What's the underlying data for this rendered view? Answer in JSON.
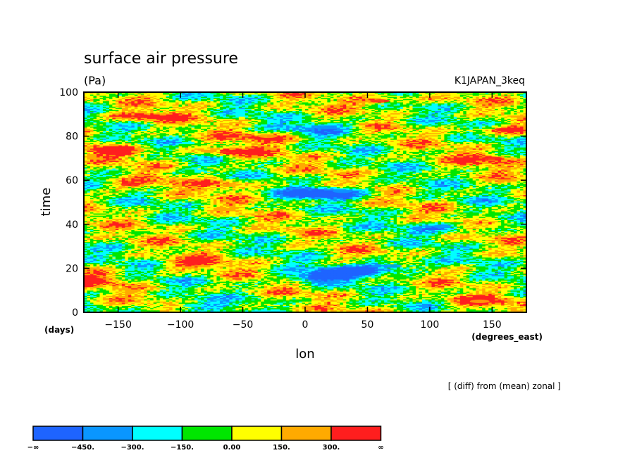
{
  "chart_data": {
    "type": "heatmap",
    "title": "surface air pressure",
    "units": "(Pa)",
    "dataset": "K1JAPAN_3keq",
    "xlabel": "lon",
    "ylabel": "time",
    "x_units": "(degrees_east)",
    "y_units": "(days)",
    "note": "[ (diff) from (mean) zonal ]",
    "xlim": [
      -177.5,
      177.5
    ],
    "ylim": [
      0,
      100
    ],
    "x_ticks": [
      -150,
      -100,
      -50,
      0,
      50,
      100,
      150
    ],
    "x_tick_labels": [
      "−150",
      "−100",
      "−50",
      "0",
      "50",
      "100",
      "150"
    ],
    "y_ticks": [
      0,
      20,
      40,
      60,
      80,
      100
    ],
    "y_tick_labels": [
      "0",
      "20",
      "40",
      "60",
      "80",
      "100"
    ],
    "colorbar": {
      "levels": [
        -450,
        -300,
        -150,
        0,
        150,
        300
      ],
      "colors": [
        "#1e64ff",
        "#0a96ff",
        "#00ffff",
        "#00e600",
        "#ffff00",
        "#ffaa00",
        "#ff1e1e"
      ],
      "labels": [
        "−∞",
        "−450.",
        "−300.",
        "−150.",
        "0.00",
        "150.",
        "300.",
        "∞"
      ]
    },
    "features": [
      {
        "lon": 10,
        "time": 16,
        "value": -560
      },
      {
        "lon": 40,
        "time": 19,
        "value": -470
      },
      {
        "lon": 70,
        "time": 21,
        "value": -430
      },
      {
        "lon": 10,
        "time": 54,
        "value": -520
      },
      {
        "lon": 15,
        "time": 84,
        "value": -420
      },
      {
        "lon": 110,
        "time": 39,
        "value": -330
      },
      {
        "lon": 30,
        "time": 55,
        "value": -340
      },
      {
        "lon": -90,
        "time": 3,
        "value": -250
      },
      {
        "lon": -130,
        "time": 89,
        "value": 360
      },
      {
        "lon": -60,
        "time": 73,
        "value": 340
      },
      {
        "lon": -150,
        "time": 73,
        "value": 330
      },
      {
        "lon": 60,
        "time": 96,
        "value": 330
      },
      {
        "lon": -140,
        "time": 58,
        "value": 310
      },
      {
        "lon": 160,
        "time": 83,
        "value": 320
      },
      {
        "lon": -90,
        "time": 22,
        "value": 300
      },
      {
        "lon": -170,
        "time": 15,
        "value": 300
      },
      {
        "lon": 150,
        "time": 70,
        "value": 300
      },
      {
        "lon": -30,
        "time": 80,
        "value": 280
      },
      {
        "lon": 140,
        "time": 5,
        "value": 280
      },
      {
        "lon": -60,
        "time": 58,
        "value": 260
      }
    ]
  }
}
